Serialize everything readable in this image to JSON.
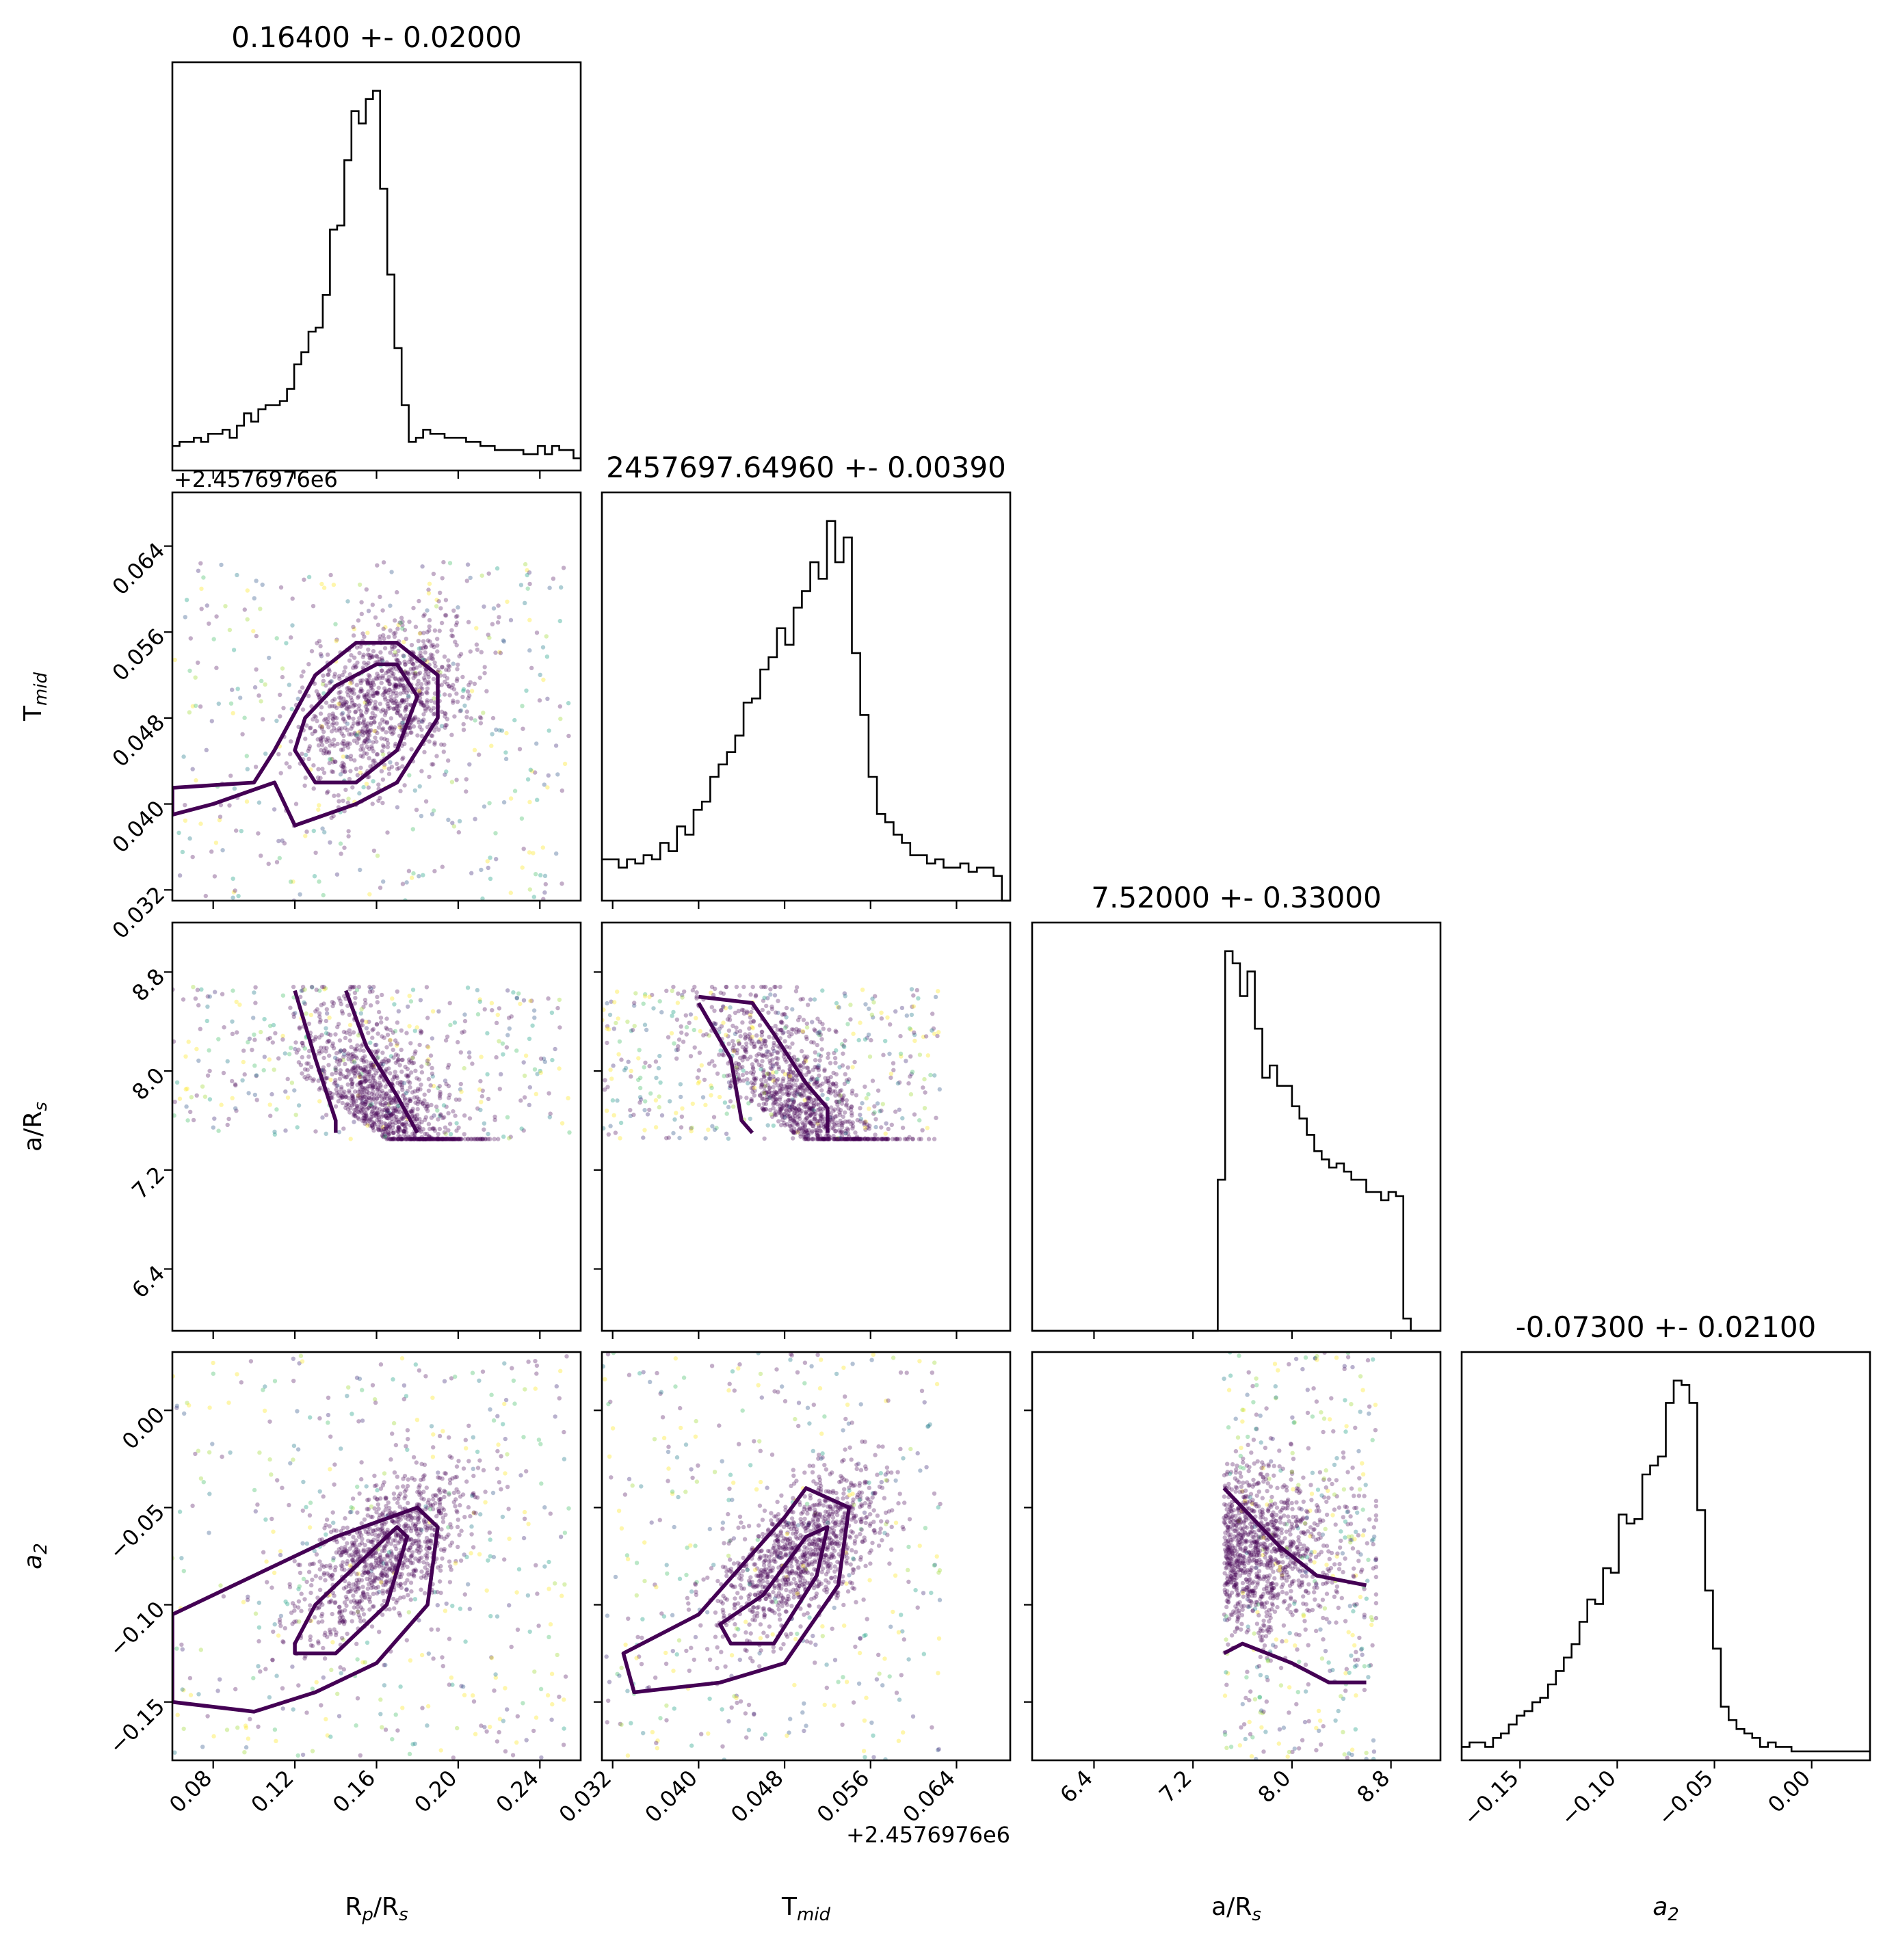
{
  "chart_data": {
    "type": "scatter",
    "subtype": "corner-plot",
    "parameters": [
      {
        "key": "rp",
        "label": "R",
        "label_sub": "p",
        "label_mid": "/R",
        "label_sub2": "s",
        "title": "0.16400 +- 0.02000",
        "center": 0.164,
        "sigma": 0.02,
        "range": [
          0.06,
          0.26
        ],
        "ticks": [
          0.08,
          0.12,
          0.16,
          0.2,
          0.24
        ],
        "tick_labels": [
          "0.08",
          "0.12",
          "0.16",
          "0.20",
          "0.24"
        ],
        "hist": [
          0.06,
          0.07,
          0.07,
          0.08,
          0.07,
          0.09,
          0.09,
          0.1,
          0.08,
          0.11,
          0.14,
          0.12,
          0.15,
          0.16,
          0.16,
          0.17,
          0.2,
          0.26,
          0.29,
          0.34,
          0.35,
          0.43,
          0.59,
          0.6,
          0.76,
          0.88,
          0.85,
          0.91,
          0.93,
          0.69,
          0.48,
          0.3,
          0.16,
          0.07,
          0.08,
          0.1,
          0.09,
          0.09,
          0.08,
          0.08,
          0.08,
          0.07,
          0.07,
          0.06,
          0.06,
          0.05,
          0.05,
          0.05,
          0.05,
          0.04,
          0.04,
          0.06,
          0.04,
          0.06,
          0.05,
          0.05,
          0.03
        ]
      },
      {
        "key": "tmid",
        "label": "T",
        "label_sub": "mid",
        "label_mid": "",
        "label_sub2": "",
        "title": "2457697.64960 +- 0.00390",
        "offset_text": "+2.4576976e6",
        "center": 0.0496,
        "sigma": 0.0039,
        "range": [
          0.031,
          0.069
        ],
        "ticks": [
          0.032,
          0.04,
          0.048,
          0.056,
          0.064
        ],
        "tick_labels": [
          "0.032",
          "0.040",
          "0.048",
          "0.056",
          "0.064"
        ],
        "hist": [
          0.1,
          0.1,
          0.08,
          0.1,
          0.09,
          0.11,
          0.1,
          0.14,
          0.12,
          0.18,
          0.16,
          0.22,
          0.24,
          0.3,
          0.33,
          0.36,
          0.4,
          0.48,
          0.49,
          0.56,
          0.59,
          0.66,
          0.62,
          0.71,
          0.75,
          0.82,
          0.78,
          0.92,
          0.82,
          0.88,
          0.6,
          0.45,
          0.3,
          0.21,
          0.19,
          0.16,
          0.14,
          0.11,
          0.11,
          0.09,
          0.1,
          0.08,
          0.08,
          0.09,
          0.07,
          0.08,
          0.08,
          0.06,
          0.0
        ]
      },
      {
        "key": "ars",
        "label": "a/R",
        "label_sub": "s",
        "label_mid": "",
        "label_sub2": "",
        "title": "7.52000 +- 0.33000",
        "center": 7.52,
        "sigma": 0.33,
        "range": [
          5.9,
          9.2
        ],
        "ticks": [
          6.4,
          7.2,
          8.0,
          8.8
        ],
        "tick_labels": [
          "6.4",
          "7.2",
          "8.0",
          "8.8"
        ],
        "hist": [
          0.0,
          0.0,
          0.0,
          0.0,
          0.0,
          0.0,
          0.0,
          0.0,
          0.0,
          0.0,
          0.0,
          0.0,
          0.0,
          0.0,
          0.0,
          0.0,
          0.0,
          0.0,
          0.0,
          0.0,
          0.0,
          0.0,
          0.0,
          0.0,
          0.0,
          0.37,
          0.93,
          0.9,
          0.82,
          0.88,
          0.74,
          0.62,
          0.65,
          0.6,
          0.6,
          0.55,
          0.52,
          0.48,
          0.44,
          0.42,
          0.4,
          0.41,
          0.39,
          0.37,
          0.37,
          0.34,
          0.34,
          0.32,
          0.34,
          0.33,
          0.03,
          0.0,
          0.0,
          0.0,
          0.0
        ]
      },
      {
        "key": "a2",
        "label": "a",
        "label_sub": "2",
        "label_mid": "",
        "label_sub2": "",
        "label_italic": true,
        "title": "-0.07300 +- 0.02100",
        "center": -0.073,
        "sigma": 0.021,
        "range": [
          -0.18,
          0.03
        ],
        "ticks": [
          -0.15,
          -0.1,
          -0.05,
          0.0
        ],
        "tick_labels": [
          "−0.15",
          "−0.10",
          "−0.05",
          "0.00"
        ],
        "hist": [
          0.03,
          0.04,
          0.04,
          0.03,
          0.05,
          0.06,
          0.08,
          0.1,
          0.11,
          0.13,
          0.14,
          0.17,
          0.2,
          0.23,
          0.26,
          0.31,
          0.36,
          0.35,
          0.43,
          0.42,
          0.55,
          0.53,
          0.54,
          0.64,
          0.66,
          0.68,
          0.8,
          0.85,
          0.84,
          0.8,
          0.56,
          0.38,
          0.25,
          0.12,
          0.09,
          0.07,
          0.06,
          0.05,
          0.03,
          0.04,
          0.03,
          0.03,
          0.02,
          0.02,
          0.02,
          0.02,
          0.02,
          0.02,
          0.02,
          0.02,
          0.02,
          0.02
        ]
      }
    ],
    "offset_text": "+2.4576976e6",
    "grid": false,
    "colormap": "viridis",
    "contour_color": "#440154",
    "hist_color": "#000000",
    "scatter_bounds": {
      "rp": [
        0.06,
        0.255
      ],
      "tmid": [
        0.031,
        0.0625
      ],
      "ars": [
        7.45,
        8.68
      ],
      "a2": [
        -0.18,
        0.03
      ]
    },
    "correlations": [
      {
        "x": "rp",
        "y": "tmid",
        "corr": 0.35
      },
      {
        "x": "rp",
        "y": "ars",
        "corr": -0.5
      },
      {
        "x": "tmid",
        "y": "ars",
        "corr": -0.55
      },
      {
        "x": "rp",
        "y": "a2",
        "corr": 0.6
      },
      {
        "x": "tmid",
        "y": "a2",
        "corr": 0.6
      },
      {
        "x": "ars",
        "y": "a2",
        "corr": -0.45
      }
    ],
    "contours": [
      {
        "x": "rp",
        "y": "tmid",
        "levels": [
          [
            [
              0.12,
              0.045
            ],
            [
              0.13,
              0.042
            ],
            [
              0.15,
              0.042
            ],
            [
              0.17,
              0.045
            ],
            [
              0.18,
              0.05
            ],
            [
              0.17,
              0.053
            ],
            [
              0.16,
              0.053
            ],
            [
              0.14,
              0.051
            ],
            [
              0.125,
              0.048
            ]
          ],
          [
            [
              0.06,
              0.0415
            ],
            [
              0.1,
              0.042
            ],
            [
              0.11,
              0.045
            ],
            [
              0.13,
              0.052
            ],
            [
              0.15,
              0.055
            ],
            [
              0.17,
              0.055
            ],
            [
              0.19,
              0.052
            ],
            [
              0.19,
              0.048
            ],
            [
              0.17,
              0.042
            ],
            [
              0.15,
              0.04
            ],
            [
              0.12,
              0.038
            ],
            [
              0.11,
              0.042
            ],
            [
              0.08,
              0.04
            ],
            [
              0.06,
              0.039
            ]
          ]
        ]
      },
      {
        "x": "rp",
        "y": "ars",
        "levels": [
          [
            [
              0.12,
              8.65
            ],
            [
              0.13,
              8.1
            ],
            [
              0.14,
              7.6
            ],
            [
              0.14,
              7.5
            ]
          ],
          [
            [
              0.145,
              8.65
            ],
            [
              0.155,
              8.2
            ],
            [
              0.17,
              7.8
            ],
            [
              0.18,
              7.5
            ]
          ]
        ]
      },
      {
        "x": "tmid",
        "y": "ars",
        "levels": [
          [
            [
              0.04,
              8.6
            ],
            [
              0.045,
              8.55
            ],
            [
              0.047,
              8.3
            ],
            [
              0.05,
              7.9
            ],
            [
              0.052,
              7.7
            ],
            [
              0.052,
              7.5
            ]
          ],
          [
            [
              0.04,
              8.55
            ],
            [
              0.043,
              8.1
            ],
            [
              0.044,
              7.6
            ],
            [
              0.045,
              7.5
            ]
          ]
        ]
      },
      {
        "x": "rp",
        "y": "a2",
        "levels": [
          [
            [
              0.12,
              -0.12
            ],
            [
              0.13,
              -0.1
            ],
            [
              0.16,
              -0.07
            ],
            [
              0.17,
              -0.06
            ],
            [
              0.175,
              -0.065
            ],
            [
              0.165,
              -0.1
            ],
            [
              0.14,
              -0.125
            ],
            [
              0.12,
              -0.125
            ]
          ],
          [
            [
              0.06,
              -0.105
            ],
            [
              0.09,
              -0.09
            ],
            [
              0.14,
              -0.065
            ],
            [
              0.18,
              -0.05
            ],
            [
              0.19,
              -0.06
            ],
            [
              0.185,
              -0.1
            ],
            [
              0.16,
              -0.13
            ],
            [
              0.13,
              -0.145
            ],
            [
              0.1,
              -0.155
            ],
            [
              0.06,
              -0.15
            ]
          ]
        ]
      },
      {
        "x": "tmid",
        "y": "a2",
        "levels": [
          [
            [
              0.042,
              -0.11
            ],
            [
              0.046,
              -0.095
            ],
            [
              0.05,
              -0.065
            ],
            [
              0.052,
              -0.06
            ],
            [
              0.051,
              -0.085
            ],
            [
              0.047,
              -0.12
            ],
            [
              0.043,
              -0.12
            ]
          ],
          [
            [
              0.033,
              -0.125
            ],
            [
              0.04,
              -0.105
            ],
            [
              0.048,
              -0.055
            ],
            [
              0.05,
              -0.04
            ],
            [
              0.054,
              -0.05
            ],
            [
              0.053,
              -0.09
            ],
            [
              0.048,
              -0.13
            ],
            [
              0.042,
              -0.14
            ],
            [
              0.034,
              -0.145
            ]
          ]
        ]
      },
      {
        "x": "ars",
        "y": "a2",
        "levels": [
          [
            [
              7.45,
              -0.04
            ],
            [
              7.6,
              -0.05
            ],
            [
              7.9,
              -0.07
            ],
            [
              8.2,
              -0.085
            ],
            [
              8.6,
              -0.09
            ]
          ],
          [
            [
              7.45,
              -0.125
            ],
            [
              7.6,
              -0.12
            ],
            [
              8.0,
              -0.13
            ],
            [
              8.3,
              -0.14
            ],
            [
              8.6,
              -0.14
            ]
          ]
        ]
      }
    ]
  }
}
